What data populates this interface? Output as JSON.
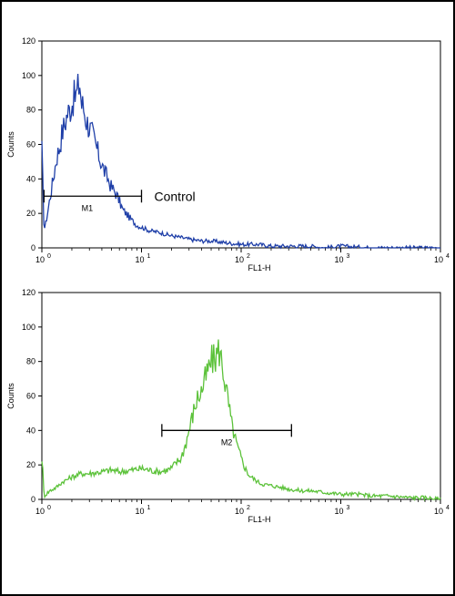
{
  "chart_data": [
    {
      "type": "line",
      "title": "",
      "xlabel": "FL1-H",
      "ylabel": "Counts",
      "x_scale": "log",
      "xlim": [
        1,
        10000
      ],
      "ylim": [
        0,
        120
      ],
      "xticks": [
        "10",
        "10",
        "10",
        "10",
        "10"
      ],
      "xtick_exponents": [
        "0",
        "1",
        "2",
        "3",
        "4"
      ],
      "yticks": [
        "0",
        "20",
        "40",
        "60",
        "80",
        "100",
        "120"
      ],
      "color": "#1f3fa8",
      "annotation": "Control",
      "gate": {
        "label": "M1",
        "x_start": 1.05,
        "x_end": 10,
        "y": 30
      },
      "series": [
        {
          "x": [
            1.0,
            1.05,
            1.1,
            1.2,
            1.3,
            1.4,
            1.5,
            1.6,
            1.7,
            1.8,
            1.9,
            2.0,
            2.1,
            2.2,
            2.3,
            2.4,
            2.5,
            2.6,
            2.8,
            3.0,
            3.2,
            3.5,
            3.8,
            4.2,
            4.6,
            5.0,
            5.5,
            6.0,
            6.5,
            7.0,
            8.0,
            9.0,
            10,
            12,
            15,
            20,
            25,
            30,
            40,
            50,
            70,
            100,
            150,
            200,
            300,
            500,
            700,
            1000,
            2000,
            5000,
            10000
          ],
          "y": [
            62,
            10,
            15,
            28,
            40,
            52,
            58,
            67,
            72,
            78,
            80,
            84,
            87,
            88,
            92,
            96,
            83,
            82,
            74,
            70,
            66,
            59,
            52,
            45,
            40,
            35,
            32,
            27,
            22,
            20,
            16,
            13,
            12,
            10,
            9,
            7,
            6,
            5,
            4,
            4,
            3,
            2,
            2,
            1,
            1,
            1,
            0,
            1,
            0,
            0,
            0
          ]
        }
      ]
    },
    {
      "type": "line",
      "title": "",
      "xlabel": "FL1-H",
      "ylabel": "Counts",
      "x_scale": "log",
      "xlim": [
        1,
        10000
      ],
      "ylim": [
        0,
        120
      ],
      "xticks": [
        "10",
        "10",
        "10",
        "10",
        "10"
      ],
      "xtick_exponents": [
        "0",
        "1",
        "2",
        "3",
        "4"
      ],
      "yticks": [
        "0",
        "20",
        "40",
        "60",
        "80",
        "100",
        "120"
      ],
      "color": "#5cc23a",
      "gate": {
        "label": "M2",
        "x_start": 16,
        "x_end": 320,
        "y": 40
      },
      "series": [
        {
          "x": [
            1.0,
            1.02,
            1.05,
            1.1,
            1.2,
            1.4,
            1.6,
            2.0,
            2.5,
            3,
            4,
            5,
            6,
            8,
            10,
            12,
            15,
            18,
            20,
            22,
            25,
            28,
            30,
            33,
            36,
            40,
            45,
            50,
            55,
            60,
            65,
            70,
            75,
            80,
            90,
            100,
            110,
            120,
            140,
            160,
            200,
            250,
            300,
            400,
            500,
            700,
            1000,
            1500,
            2000,
            3000,
            5000,
            7000,
            10000
          ],
          "y": [
            22,
            18,
            2,
            3,
            5,
            7,
            10,
            13,
            15,
            15,
            16,
            17,
            16,
            17,
            18,
            17,
            16,
            17,
            18,
            21,
            24,
            33,
            40,
            50,
            58,
            63,
            72,
            80,
            82,
            87,
            78,
            65,
            55,
            44,
            32,
            24,
            18,
            14,
            11,
            9,
            8,
            7,
            6,
            5,
            5,
            4,
            3,
            3,
            2,
            2,
            1,
            1,
            0
          ]
        }
      ]
    }
  ]
}
